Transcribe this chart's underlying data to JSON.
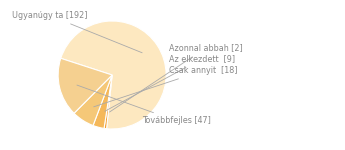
{
  "labels": [
    "Ugyanúgy ta [192]",
    "Azonnal abbah [2]",
    "Az elkezdett  [9]",
    "Csak annyit  [18]",
    "Továbbfejles [47]"
  ],
  "values": [
    192,
    2,
    9,
    18,
    47
  ],
  "slice_colors": [
    "#fde8c0",
    "#f5a030",
    "#f5b85a",
    "#f5c878",
    "#f5d090"
  ],
  "startangle": 162,
  "counterclock": false,
  "label_color": "#888888",
  "line_color": "#aaaaaa",
  "fontsize": 5.8
}
